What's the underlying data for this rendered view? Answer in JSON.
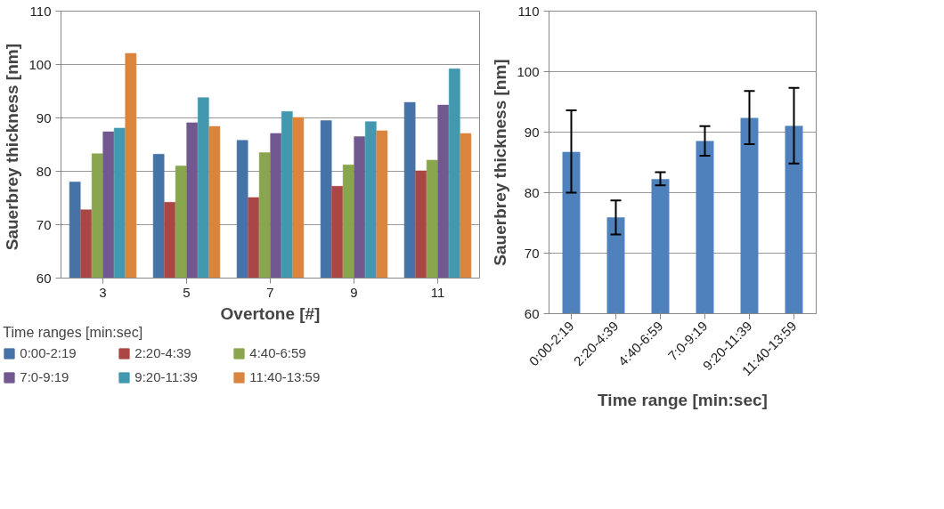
{
  "chart_data": [
    {
      "type": "bar",
      "xlabel": "Overtone [#]",
      "ylabel": "Sauerbrey thickness  [nm]",
      "legend_title": "Time ranges [min:sec]",
      "categories": [
        "3",
        "5",
        "7",
        "9",
        "11"
      ],
      "ylim": [
        60,
        110
      ],
      "yticks": [
        60,
        70,
        80,
        90,
        100,
        110
      ],
      "grid": "y",
      "legend": "bottom",
      "series": [
        {
          "name": "0:00-2:19",
          "color": "#4572a7",
          "values": [
            78.0,
            83.2,
            85.8,
            89.5,
            92.9
          ]
        },
        {
          "name": "2:20-4:39",
          "color": "#aa4643",
          "values": [
            72.8,
            74.2,
            75.1,
            77.2,
            80.1
          ]
        },
        {
          "name": "4:40-6:59",
          "color": "#89a54e",
          "values": [
            83.3,
            81.0,
            83.5,
            81.2,
            82.1
          ]
        },
        {
          "name": "7:0-9:19",
          "color": "#71588f",
          "values": [
            87.4,
            89.1,
            87.1,
            86.5,
            92.4
          ]
        },
        {
          "name": "9:20-11:39",
          "color": "#4198af",
          "values": [
            88.1,
            93.8,
            91.2,
            89.3,
            99.2
          ]
        },
        {
          "name": "11:40-13:59",
          "color": "#db843d",
          "values": [
            102.1,
            88.4,
            90.1,
            87.6,
            87.1
          ]
        }
      ]
    },
    {
      "type": "bar",
      "xlabel": "Time range [min:sec]",
      "ylabel": "Sauerbrey thickness [nm]",
      "categories": [
        "0:00-2:19",
        "2:20-4:39",
        "4:40-6:59",
        "7:0-9:19",
        "9:20-11:39",
        "11:40-13:59"
      ],
      "ylim": [
        60,
        110
      ],
      "yticks": [
        60,
        70,
        80,
        90,
        100,
        110
      ],
      "grid": "y",
      "series": [
        {
          "color": "#4f81bd",
          "values": [
            86.7,
            75.9,
            82.2,
            88.5,
            92.3,
            91.0
          ],
          "errors": [
            [
              80.0,
              93.6
            ],
            [
              73.1,
              78.7
            ],
            [
              81.2,
              83.4
            ],
            [
              86.1,
              91.0
            ],
            [
              88.0,
              96.8
            ],
            [
              84.8,
              97.3
            ]
          ]
        }
      ]
    }
  ]
}
